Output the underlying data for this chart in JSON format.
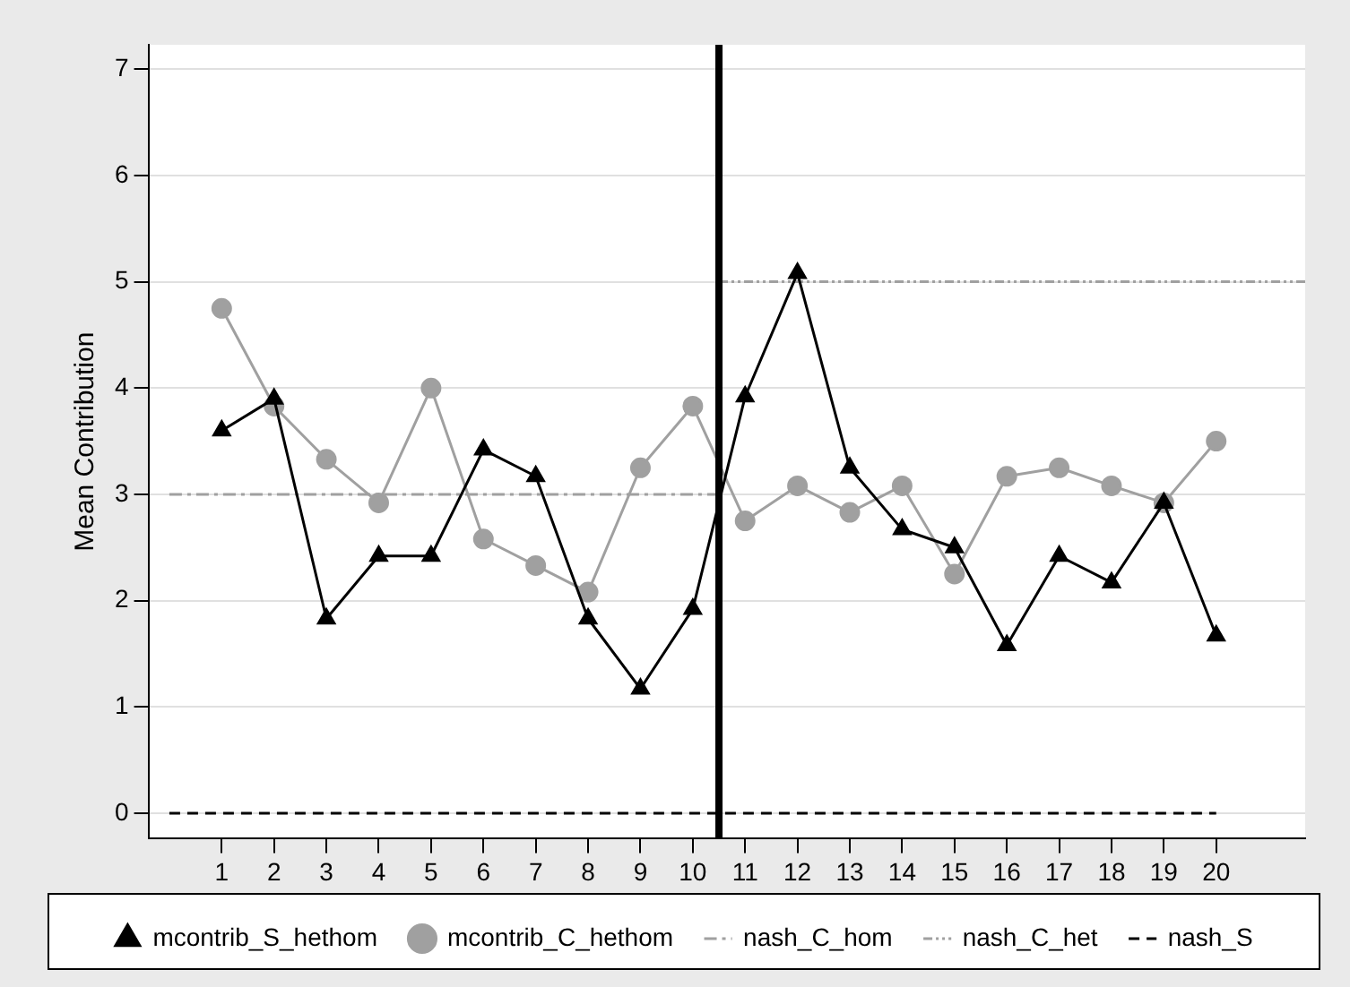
{
  "chart_data": {
    "type": "line",
    "ylabel": "Mean Contribution",
    "x": [
      1,
      2,
      3,
      4,
      5,
      6,
      7,
      8,
      9,
      10,
      11,
      12,
      13,
      14,
      15,
      16,
      17,
      18,
      19,
      20
    ],
    "xlim": [
      -0.4,
      21.7
    ],
    "xticks": [
      1,
      2,
      3,
      4,
      5,
      6,
      7,
      8,
      9,
      10,
      11,
      12,
      13,
      14,
      15,
      16,
      17,
      18,
      19,
      20
    ],
    "ylim": [
      -0.24,
      7.23
    ],
    "yticks": [
      0,
      1,
      2,
      3,
      4,
      5,
      6,
      7
    ],
    "grid": "y",
    "legend": "bottom",
    "series": [
      {
        "name": "mcontrib_S_hethom",
        "color": "#000000",
        "marker": "triangle",
        "line_style": "solid",
        "values": [
          3.6,
          3.9,
          1.83,
          2.42,
          2.42,
          3.42,
          3.17,
          1.83,
          1.17,
          1.92,
          3.92,
          5.08,
          3.25,
          2.67,
          2.5,
          1.58,
          2.42,
          2.17,
          2.92,
          1.67
        ]
      },
      {
        "name": "mcontrib_C_hethom",
        "color": "#a0a0a0",
        "marker": "circle",
        "line_style": "solid",
        "values": [
          4.75,
          3.83,
          3.33,
          2.92,
          4.0,
          2.58,
          2.33,
          2.08,
          3.25,
          3.83,
          2.75,
          3.08,
          2.83,
          3.08,
          2.25,
          3.17,
          3.25,
          3.08,
          2.92,
          3.5
        ]
      },
      {
        "name": "nash_C_hom",
        "color": "#a0a0a0",
        "marker": "none",
        "line_style": "dashdot",
        "x": [
          0,
          10.5
        ],
        "values": [
          3,
          3
        ]
      },
      {
        "name": "nash_C_het",
        "color": "#a0a0a0",
        "marker": "none",
        "line_style": "dashdotdot",
        "x": [
          10.5,
          21.7
        ],
        "values": [
          5,
          5
        ]
      },
      {
        "name": "nash_S",
        "color": "#000000",
        "marker": "none",
        "line_style": "dashed",
        "x": [
          0,
          20
        ],
        "values": [
          0,
          0
        ]
      }
    ],
    "ref_lines": [
      {
        "axis": "x",
        "value": 10.5,
        "color": "#000000"
      }
    ]
  }
}
